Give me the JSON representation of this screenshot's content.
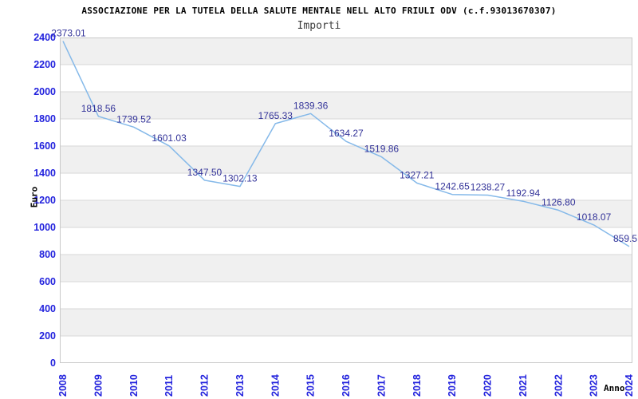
{
  "header": {
    "title": "ASSOCIAZIONE PER LA TUTELA DELLA SALUTE MENTALE NELL ALTO FRIULI ODV (c.f.93013670307)"
  },
  "chart_data": {
    "type": "line",
    "title": "Importi",
    "xlabel": "Anno",
    "ylabel": "Euro",
    "x": [
      "2008",
      "2009",
      "2010",
      "2011",
      "2012",
      "2013",
      "2014",
      "2015",
      "2016",
      "2017",
      "2018",
      "2019",
      "2020",
      "2021",
      "2022",
      "2023",
      "2024"
    ],
    "values": [
      2373.01,
      1818.56,
      1739.52,
      1601.03,
      1347.5,
      1302.13,
      1765.33,
      1839.36,
      1634.27,
      1519.86,
      1327.21,
      1242.65,
      1238.27,
      1192.94,
      1126.8,
      1018.07,
      859.5
    ],
    "point_labels": [
      "2373.01",
      "1818.56",
      "1739.52",
      "1601.03",
      "1347.50",
      "1302.13",
      "1765.33",
      "1839.36",
      "1634.27",
      "1519.86",
      "1327.21",
      "1242.65",
      "1238.27",
      "1192.94",
      "1126.80",
      "1018.07",
      "859.5"
    ],
    "ylim": [
      0,
      2400
    ],
    "ytick_step": 200,
    "grid": "horizontal",
    "legend": "none",
    "band_fill": "alternating",
    "colors": {
      "line": "#85b9e9",
      "data_label": "#333399",
      "tick_label": "#2222dd",
      "band": "#f0f0f0",
      "grid_line": "#d7d7d7",
      "plot_border": "#c9c9c9",
      "title": "#000000",
      "subtitle": "#3d3d3d"
    }
  }
}
